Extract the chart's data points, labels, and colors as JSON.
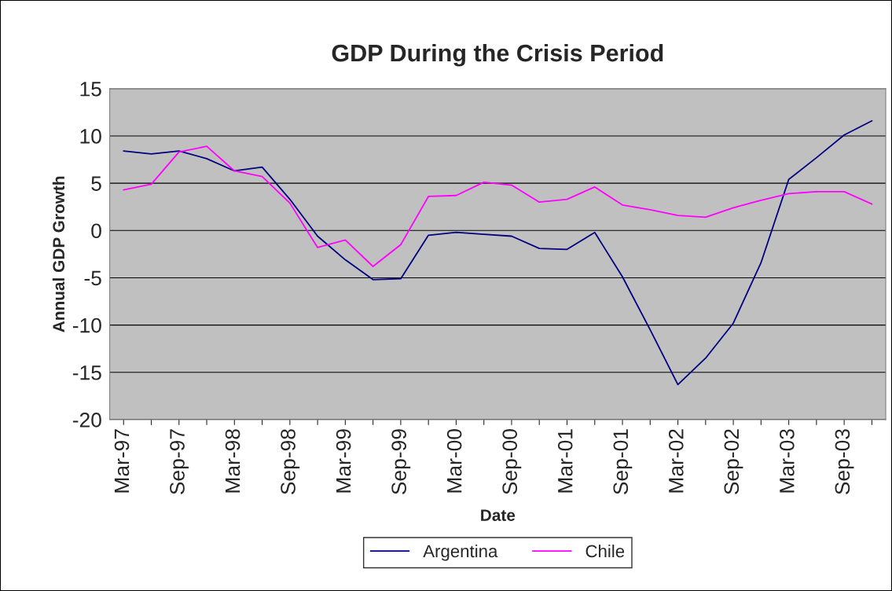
{
  "chart_data": {
    "type": "line",
    "title": "GDP During the Crisis Period",
    "xlabel": "Date",
    "ylabel": "Annual GDP Growth",
    "categories": [
      "Mar-97",
      null,
      "Sep-97",
      null,
      "Mar-98",
      null,
      "Sep-98",
      null,
      "Mar-99",
      null,
      "Sep-99",
      null,
      "Mar-00",
      null,
      "Sep-00",
      null,
      "Mar-01",
      null,
      "Sep-01",
      null,
      "Mar-02",
      null,
      "Sep-02",
      null,
      "Mar-03",
      null,
      "Sep-03",
      null
    ],
    "series": [
      {
        "name": "Argentina",
        "color": "#000080",
        "values": [
          8.4,
          8.1,
          8.4,
          7.6,
          6.3,
          6.7,
          3.3,
          -0.6,
          -3.1,
          -5.2,
          -5.1,
          -0.5,
          -0.2,
          -0.4,
          -0.6,
          -1.9,
          -2.0,
          -0.2,
          -4.9,
          -10.5,
          -16.3,
          -13.5,
          -9.8,
          -3.4,
          5.4,
          7.7,
          10.1,
          11.6
        ]
      },
      {
        "name": "Chile",
        "color": "#ff00ff",
        "values": [
          4.3,
          4.9,
          8.3,
          8.9,
          6.3,
          5.7,
          2.9,
          -1.8,
          -1.0,
          -3.8,
          -1.5,
          3.6,
          3.7,
          5.1,
          4.8,
          3.0,
          3.3,
          4.6,
          2.7,
          2.2,
          1.6,
          1.4,
          2.4,
          3.2,
          3.9,
          4.1,
          4.1,
          2.8
        ]
      }
    ],
    "ylim": [
      -20,
      15
    ],
    "yticks": [
      -20,
      -15,
      -10,
      -5,
      0,
      5,
      10,
      15
    ],
    "grid": "y",
    "legend": "bottom",
    "marker": "none",
    "line_style": "solid"
  }
}
